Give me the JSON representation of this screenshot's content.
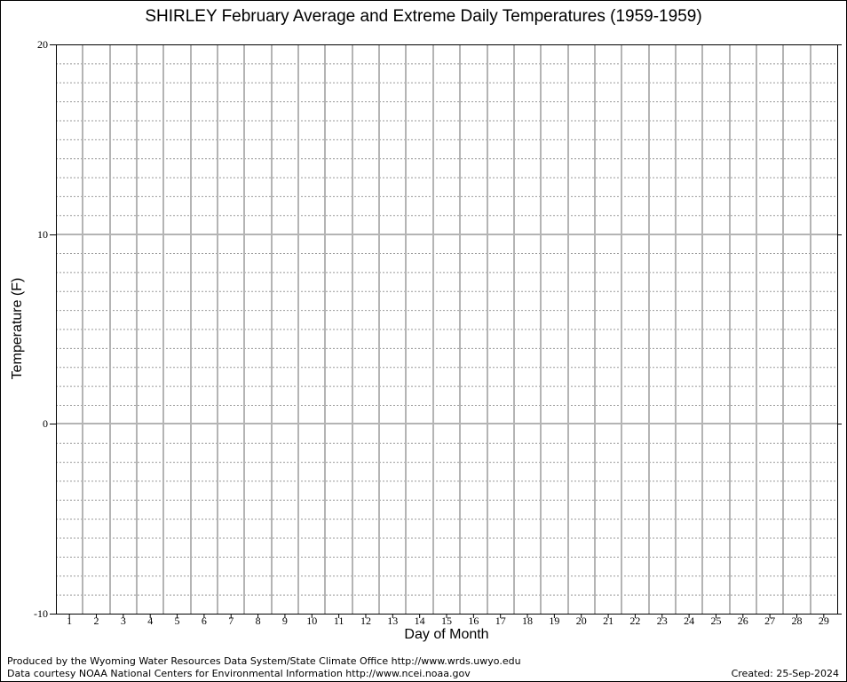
{
  "chart_data": {
    "type": "line",
    "title": "SHIRLEY February Average and Extreme Daily Temperatures (1959-1959)",
    "xlabel": "Day of Month",
    "ylabel": "Temperature (F)",
    "x": [
      1,
      2,
      3,
      4,
      5,
      6,
      7,
      8,
      9,
      10,
      11,
      12,
      13,
      14,
      15,
      16,
      17,
      18,
      19,
      20,
      21,
      22,
      23,
      24,
      25,
      26,
      27,
      28,
      29
    ],
    "x_tick_labels": [
      "1",
      "2",
      "3",
      "4",
      "5",
      "6",
      "7",
      "8",
      "9",
      "10",
      "11",
      "12",
      "13",
      "14",
      "15",
      "16",
      "17",
      "18",
      "19",
      "20",
      "21",
      "22",
      "23",
      "24",
      "25",
      "26",
      "27",
      "28",
      "29"
    ],
    "y_tick_labels": [
      "20",
      "10",
      "0",
      "-10"
    ],
    "y_ticks": [
      20,
      10,
      0,
      -10
    ],
    "ylim": [
      -10,
      20
    ],
    "xlim": [
      0.5,
      29.5
    ],
    "grid": true,
    "series": []
  },
  "footer": {
    "credit_line1": "Produced by the Wyoming Water Resources Data System/State Climate Office http://www.wrds.uwyo.edu",
    "credit_line2": "Data courtesy NOAA National Centers for Environmental Information http://www.ncei.noaa.gov",
    "created": "Created:  25-Sep-2024"
  }
}
